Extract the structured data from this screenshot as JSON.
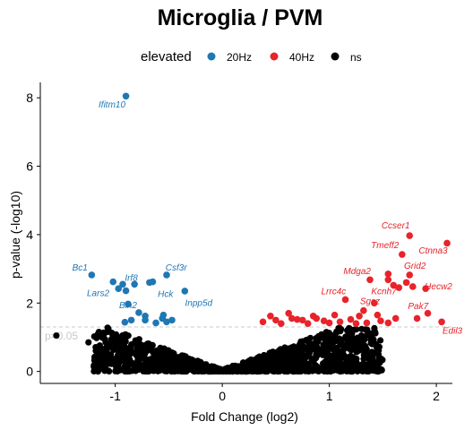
{
  "chart_data": {
    "type": "scatter",
    "title": "Microglia / PVM",
    "xlabel": "Fold Change (log2)",
    "ylabel": "p-value (-log10)",
    "xlim": [
      -1.7,
      2.15
    ],
    "ylim": [
      -0.35,
      8.45
    ],
    "xticks": [
      -1,
      0,
      1,
      2
    ],
    "yticks": [
      0,
      2,
      4,
      6,
      8
    ],
    "grid": false,
    "legend": {
      "title": "elevated",
      "position": "top",
      "entries": [
        {
          "label": "20Hz",
          "color": "#1f77b4"
        },
        {
          "label": "40Hz",
          "color": "#e8232a"
        },
        {
          "label": "ns",
          "color": "#000000"
        }
      ]
    },
    "reference_line": {
      "y": 1.301,
      "label": "p=0.05"
    },
    "series": [
      {
        "name": "20Hz",
        "color": "#1f77b4",
        "points": [
          [
            -0.9,
            8.05
          ],
          [
            -1.22,
            2.82
          ],
          [
            -1.02,
            2.62
          ],
          [
            -0.93,
            2.55
          ],
          [
            -0.9,
            2.36
          ],
          [
            -0.97,
            2.42
          ],
          [
            -0.82,
            2.55
          ],
          [
            -0.65,
            2.62
          ],
          [
            -0.68,
            2.6
          ],
          [
            -0.52,
            2.82
          ],
          [
            -0.35,
            2.35
          ],
          [
            -0.88,
            1.97
          ],
          [
            -0.78,
            1.72
          ],
          [
            -0.72,
            1.62
          ],
          [
            -0.55,
            1.65
          ],
          [
            -0.52,
            1.45
          ],
          [
            -0.47,
            1.5
          ],
          [
            -0.62,
            1.42
          ],
          [
            -0.85,
            1.5
          ],
          [
            -0.91,
            1.44
          ],
          [
            -0.56,
            1.55
          ],
          [
            -0.72,
            1.5
          ]
        ]
      },
      {
        "name": "40Hz",
        "color": "#e8232a",
        "points": [
          [
            1.75,
            3.97
          ],
          [
            1.68,
            3.42
          ],
          [
            2.1,
            3.75
          ],
          [
            1.55,
            2.85
          ],
          [
            1.75,
            2.82
          ],
          [
            1.38,
            2.68
          ],
          [
            1.55,
            2.68
          ],
          [
            1.6,
            2.52
          ],
          [
            1.65,
            2.45
          ],
          [
            1.72,
            2.6
          ],
          [
            1.78,
            2.48
          ],
          [
            1.9,
            2.42
          ],
          [
            1.15,
            2.1
          ],
          [
            1.42,
            2.0
          ],
          [
            1.32,
            1.78
          ],
          [
            1.28,
            1.62
          ],
          [
            1.62,
            1.55
          ],
          [
            1.82,
            1.55
          ],
          [
            1.92,
            1.7
          ],
          [
            2.05,
            1.45
          ],
          [
            1.55,
            1.42
          ],
          [
            1.2,
            1.52
          ],
          [
            1.1,
            1.45
          ],
          [
            1.05,
            1.65
          ],
          [
            0.95,
            1.48
          ],
          [
            0.88,
            1.55
          ],
          [
            0.85,
            1.62
          ],
          [
            0.8,
            1.4
          ],
          [
            0.75,
            1.5
          ],
          [
            0.7,
            1.52
          ],
          [
            0.65,
            1.55
          ],
          [
            0.62,
            1.7
          ],
          [
            0.55,
            1.4
          ],
          [
            0.5,
            1.5
          ],
          [
            0.45,
            1.62
          ],
          [
            0.38,
            1.45
          ],
          [
            1.35,
            1.42
          ],
          [
            1.45,
            1.65
          ],
          [
            1.25,
            1.4
          ],
          [
            1.0,
            1.42
          ],
          [
            1.48,
            1.48
          ]
        ]
      }
    ],
    "ns_cloud": {
      "count": 1250,
      "seed": 7,
      "x_range": [
        -1.2,
        1.5
      ],
      "outliers": [
        [
          -1.55,
          1.05
        ],
        [
          1.47,
          0.25
        ],
        [
          -1.25,
          0.85
        ],
        [
          1.4,
          0.8
        ],
        [
          1.3,
          1.05
        ],
        [
          -1.15,
          1.1
        ],
        [
          1.2,
          0.45
        ]
      ]
    },
    "labels": [
      {
        "text": "Ifitm10",
        "x": -1.03,
        "y": 7.72,
        "color": "#1f77b4"
      },
      {
        "text": "Bc1",
        "x": -1.33,
        "y": 2.95,
        "color": "#1f77b4"
      },
      {
        "text": "Csf3r",
        "x": -0.43,
        "y": 2.95,
        "color": "#1f77b4"
      },
      {
        "text": "Irf8",
        "x": -0.85,
        "y": 2.65,
        "color": "#1f77b4"
      },
      {
        "text": "Lars2",
        "x": -1.16,
        "y": 2.2,
        "color": "#1f77b4"
      },
      {
        "text": "Hck",
        "x": -0.53,
        "y": 2.18,
        "color": "#1f77b4"
      },
      {
        "text": "Inpp5d",
        "x": -0.22,
        "y": 1.92,
        "color": "#1f77b4"
      },
      {
        "text": "Bin2",
        "x": -0.88,
        "y": 1.85,
        "color": "#1f77b4"
      },
      {
        "text": "Ccser1",
        "x": 1.62,
        "y": 4.18,
        "color": "#e8232a"
      },
      {
        "text": "Tmeff2",
        "x": 1.52,
        "y": 3.6,
        "color": "#e8232a"
      },
      {
        "text": "Ctnna3",
        "x": 1.97,
        "y": 3.45,
        "color": "#e8232a"
      },
      {
        "text": "Grid2",
        "x": 1.8,
        "y": 3.0,
        "color": "#e8232a"
      },
      {
        "text": "Mdga2",
        "x": 1.26,
        "y": 2.85,
        "color": "#e8232a"
      },
      {
        "text": "Hecw2",
        "x": 2.02,
        "y": 2.4,
        "color": "#e8232a"
      },
      {
        "text": "Kcnh7",
        "x": 1.51,
        "y": 2.25,
        "color": "#e8232a"
      },
      {
        "text": "Lrrc4c",
        "x": 1.04,
        "y": 2.25,
        "color": "#e8232a"
      },
      {
        "text": "Sgcz",
        "x": 1.38,
        "y": 1.97,
        "color": "#e8232a"
      },
      {
        "text": "Pak7",
        "x": 1.83,
        "y": 1.82,
        "color": "#e8232a"
      },
      {
        "text": "Edil3",
        "x": 2.15,
        "y": 1.1,
        "color": "#e8232a"
      }
    ]
  }
}
